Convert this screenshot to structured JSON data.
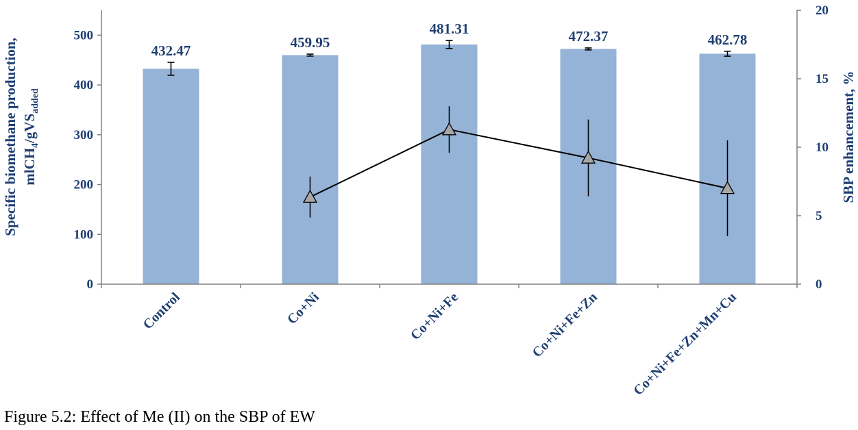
{
  "caption": "Figure 5.2: Effect of Me (II) on the SBP of EW",
  "colors": {
    "bar": "#95b3d7",
    "text": "#1f3f73",
    "line": "#000000",
    "marker": "#a6a6a6",
    "axis": "#808080"
  },
  "chart_data": {
    "type": "bar",
    "categories": [
      "Control",
      "Co+Ni",
      "Co+Ni+Fe",
      "Co+Ni+Fe+Zn",
      "Co+Ni+Fe+Zn+Mn+Cu"
    ],
    "bar_series": {
      "values": [
        432.47,
        459.95,
        481.31,
        472.37,
        462.78
      ],
      "error": [
        13,
        2,
        8,
        2,
        5
      ],
      "data_labels": [
        "432.47",
        "459.95",
        "481.31",
        "472.37",
        "462.78"
      ]
    },
    "line_series": {
      "axis": "secondary",
      "marker": "triangle",
      "x_categories": [
        "Co+Ni",
        "Co+Ni+Fe",
        "Co+Ni+Fe+Zn",
        "Co+Ni+Fe+Zn+Mn+Cu"
      ],
      "values": [
        6.36,
        11.29,
        9.22,
        7.0
      ],
      "error": [
        1.5,
        1.7,
        2.8,
        3.5
      ]
    },
    "y_left": {
      "label_main": "Specific biomethane production,",
      "label_unit_prefix": "mlCH",
      "label_unit_sub1": "4",
      "label_unit_mid": "/gVS",
      "label_unit_sub2": "added",
      "lim": [
        0,
        550
      ],
      "ticks": [
        "0",
        "100",
        "200",
        "300",
        "400",
        "500"
      ]
    },
    "y_right": {
      "label": "SBP enhancement, %",
      "lim": [
        0,
        20
      ],
      "ticks": [
        "0",
        "5",
        "10",
        "15",
        "20"
      ]
    },
    "grid": false,
    "legend": "none"
  }
}
